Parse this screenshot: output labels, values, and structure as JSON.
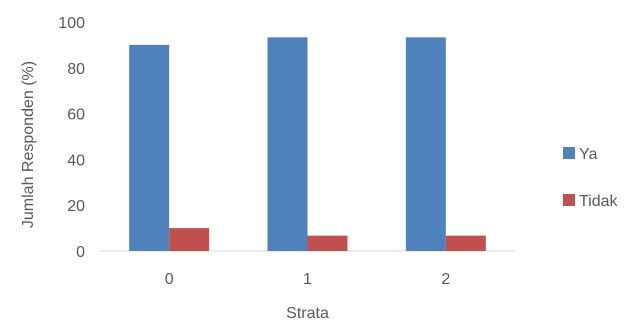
{
  "chart_data": {
    "type": "bar",
    "title": "",
    "xlabel": "Strata",
    "ylabel": "Jumlah Responden  (%)",
    "categories": [
      "0",
      "1",
      "2"
    ],
    "series": [
      {
        "name": "Ya",
        "values": [
          90,
          93.3,
          93.3
        ],
        "color": "#4F81BD"
      },
      {
        "name": "Tidak",
        "values": [
          10,
          6.7,
          6.7
        ],
        "color": "#C0504D"
      }
    ],
    "ylim": [
      0,
      100
    ],
    "yticks": [
      "0",
      "20",
      "40",
      "60",
      "80",
      "100"
    ],
    "grid": false,
    "legend_position": "right"
  }
}
